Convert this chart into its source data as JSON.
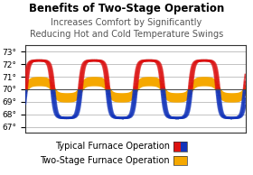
{
  "title": "Benefits of Two-Stage Operation",
  "subtitle": "Increases Comfort by Significantly\nReducing Hot and Cold Temperature Swings",
  "ylim": [
    66.5,
    73.5
  ],
  "yticks": [
    67,
    68,
    69,
    70,
    71,
    72,
    73
  ],
  "ytick_labels": [
    "67°",
    "68°",
    "69°",
    "70°",
    "71°",
    "72°",
    "73°"
  ],
  "typical_amplitude": 2.3,
  "typical_mean": 70.0,
  "twostage_amplitude": 0.65,
  "twostage_mean": 70.0,
  "num_cycles": 4.0,
  "red_color": "#dd1111",
  "blue_color": "#1133bb",
  "gold_color": "#f5a800",
  "background_color": "#ffffff",
  "plot_bg_color": "#ffffff",
  "legend1": "Typical Furnace Operation",
  "legend2": "Two-Stage Furnace Operation",
  "title_fontsize": 8.5,
  "subtitle_fontsize": 7,
  "tick_fontsize": 6.5,
  "legend_fontsize": 7
}
